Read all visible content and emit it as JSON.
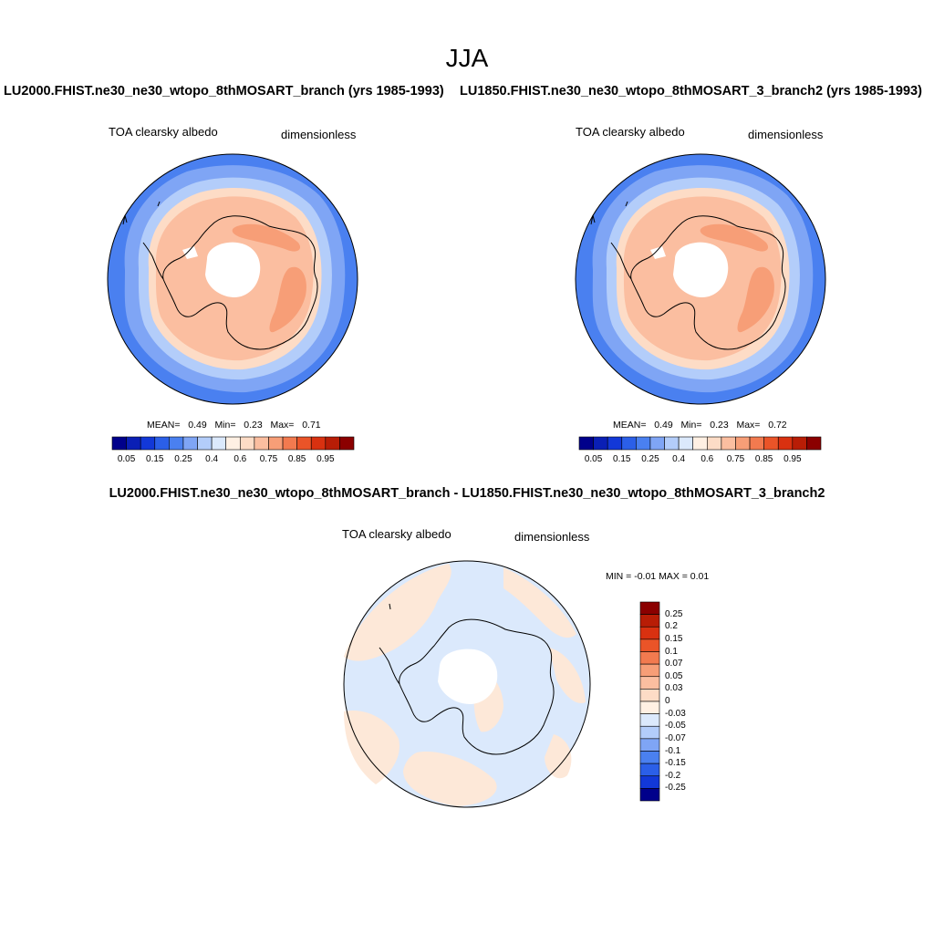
{
  "title": "JJA",
  "panels": [
    {
      "case": "LU2000.FHIST.ne30_ne30_wtopo_8thMOSART_branch (yrs 1985-1993)",
      "variable": "TOA clearsky albedo",
      "units": "dimensionless",
      "stats": {
        "mean_label": "MEAN=",
        "mean": "0.49",
        "min_label": "Min=",
        "min": "0.23",
        "max_label": "Max=",
        "max": "0.71"
      }
    },
    {
      "case": "LU1850.FHIST.ne30_ne30_wtopo_8thMOSART_3_branch2 (yrs 1985-1993)",
      "variable": "TOA clearsky albedo",
      "units": "dimensionless",
      "stats": {
        "mean_label": "MEAN=",
        "mean": "0.49",
        "min_label": "Min=",
        "min": "0.23",
        "max_label": "Max=",
        "max": "0.72"
      }
    }
  ],
  "abs_colorbar": {
    "labels": [
      "0.05",
      "0.15",
      "0.25",
      "0.4",
      "0.6",
      "0.75",
      "0.85",
      "0.95"
    ],
    "colors": [
      "#00008b",
      "#0a1fb5",
      "#1238d8",
      "#2b5fe8",
      "#4a80f0",
      "#7fa5f5",
      "#b3cdfa",
      "#dbe9fc",
      "#fff0e3",
      "#fddcc6",
      "#fbbea0",
      "#f79e77",
      "#f27a4f",
      "#ea5428",
      "#d93110",
      "#b81d06",
      "#8b0000"
    ]
  },
  "diff": {
    "title": "LU2000.FHIST.ne30_ne30_wtopo_8thMOSART_branch - LU1850.FHIST.ne30_ne30_wtopo_8thMOSART_3_branch2",
    "variable": "TOA clearsky albedo",
    "units": "dimensionless",
    "minmax_label": "MIN =  -0.01 MAX =   0.01",
    "colorbar": {
      "labels": [
        "0.25",
        "0.2",
        "0.15",
        "0.1",
        "0.07",
        "0.05",
        "0.03",
        "0",
        "-0.03",
        "-0.05",
        "-0.07",
        "-0.1",
        "-0.15",
        "-0.2",
        "-0.25"
      ],
      "colors": [
        "#8b0000",
        "#b81d06",
        "#d93110",
        "#ea5428",
        "#f27a4f",
        "#f79e77",
        "#fbbea0",
        "#fddcc6",
        "#fff0e3",
        "#dbe9fc",
        "#b3cdfa",
        "#7fa5f5",
        "#4a80f0",
        "#2b5fe8",
        "#1238d8",
        "#00008b"
      ]
    }
  },
  "colors": {
    "ocean_outer": "#4a80f0",
    "ocean_mid": "#7fa5f5",
    "ocean_inner": "#b3cdfa",
    "ice_edge": "#fddcc6",
    "antarctic_main": "#fbbea0",
    "antarctic_high": "#f79e77",
    "polar_gap": "#ffffff",
    "diff_neg": "#dbe9fc",
    "diff_pos": "#fde8d8"
  }
}
